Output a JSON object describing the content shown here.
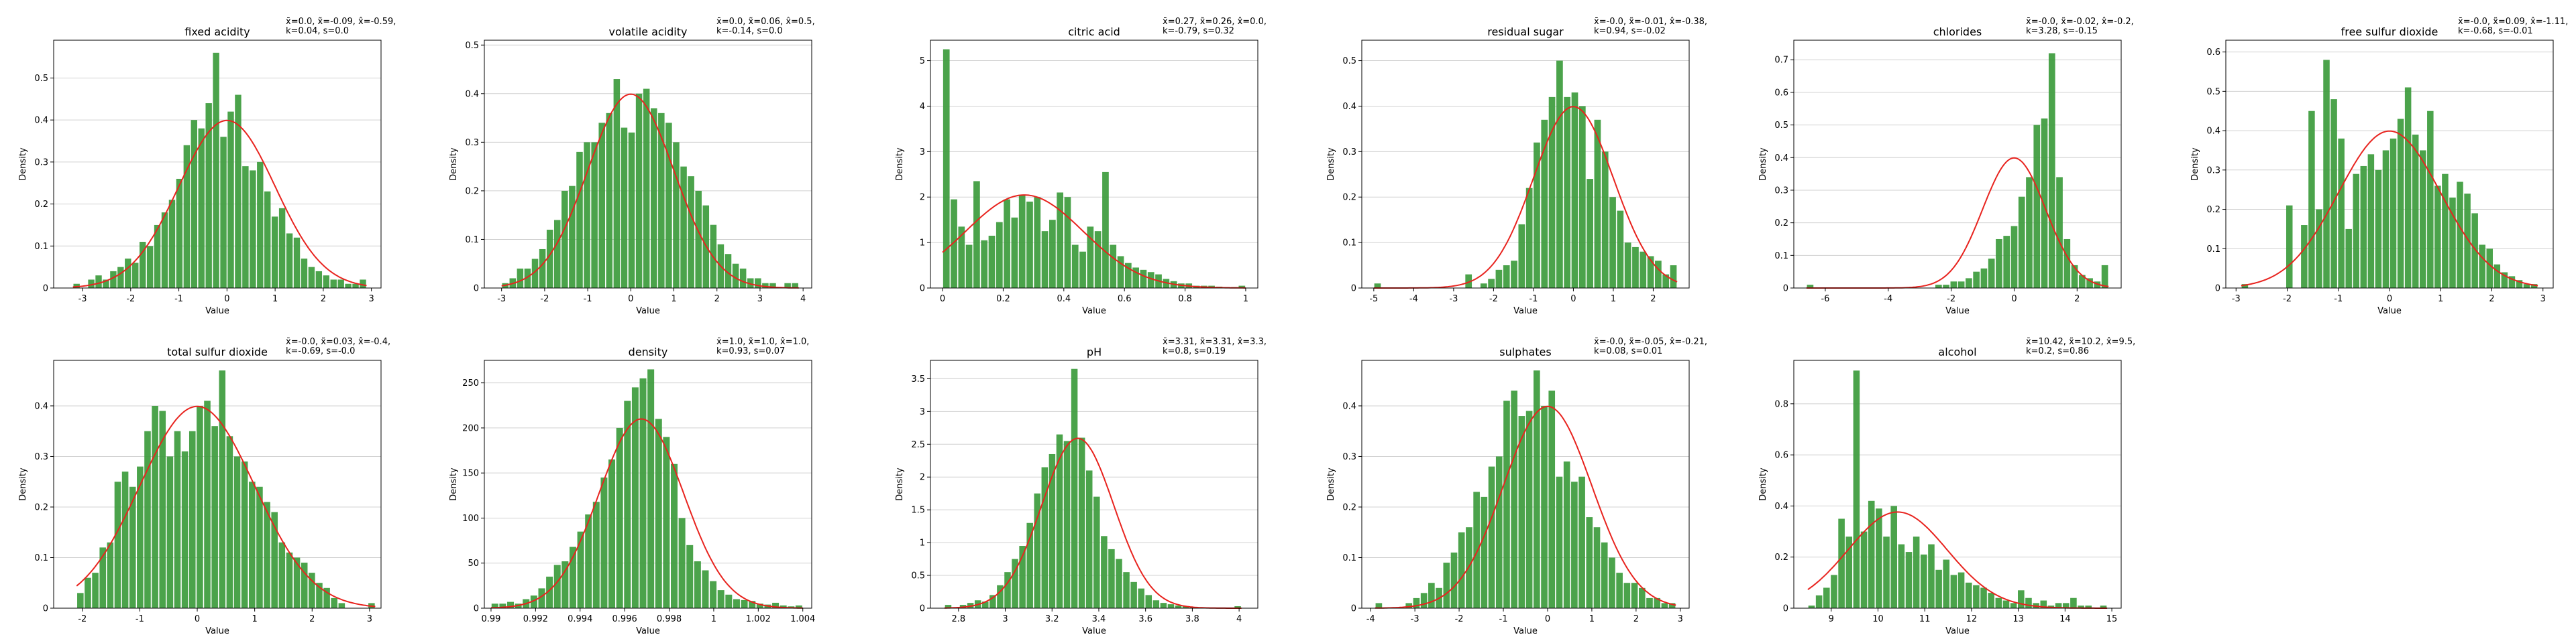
{
  "chart_data": [
    {
      "type": "bar",
      "title": "fixed acidity",
      "annotation": [
        "x̄=0.0, x̃=-0.09, x̂=-0.59,",
        "k=0.04, s=0.0"
      ],
      "xlabel": "Value",
      "ylabel": "Density",
      "xlim": [
        -3.6,
        3.2
      ],
      "ylim": [
        0,
        0.59
      ],
      "xticks": [
        -3,
        -2,
        -1,
        0,
        1,
        2,
        3
      ],
      "yticks": [
        0.0,
        0.1,
        0.2,
        0.3,
        0.4,
        0.5
      ],
      "bin_range": [
        -3.2,
        2.9
      ],
      "values": [
        0.01,
        0.0,
        0.02,
        0.03,
        0.02,
        0.04,
        0.05,
        0.07,
        0.06,
        0.11,
        0.1,
        0.15,
        0.18,
        0.21,
        0.26,
        0.34,
        0.4,
        0.38,
        0.44,
        0.56,
        0.36,
        0.42,
        0.46,
        0.29,
        0.28,
        0.3,
        0.23,
        0.17,
        0.19,
        0.13,
        0.12,
        0.07,
        0.05,
        0.04,
        0.03,
        0.02,
        0.02,
        0.01,
        0.01,
        0.02
      ],
      "curve": {
        "mean": 0.0,
        "sd": 1.0
      }
    },
    {
      "type": "bar",
      "title": "volatile acidity",
      "annotation": [
        "x̄=0.0, x̃=0.06, x̂=0.5,",
        "k=-0.14, s=0.0"
      ],
      "xlabel": "Value",
      "ylabel": "Density",
      "xlim": [
        -3.4,
        4.2
      ],
      "ylim": [
        0,
        0.51
      ],
      "xticks": [
        -3,
        -2,
        -1,
        0,
        1,
        2,
        3,
        4
      ],
      "yticks": [
        0.0,
        0.1,
        0.2,
        0.3,
        0.4,
        0.5
      ],
      "bin_range": [
        -3.0,
        3.9
      ],
      "values": [
        0.01,
        0.02,
        0.04,
        0.04,
        0.06,
        0.08,
        0.12,
        0.14,
        0.2,
        0.21,
        0.28,
        0.3,
        0.3,
        0.34,
        0.36,
        0.43,
        0.33,
        0.32,
        0.4,
        0.41,
        0.37,
        0.36,
        0.34,
        0.3,
        0.25,
        0.23,
        0.2,
        0.17,
        0.13,
        0.09,
        0.07,
        0.05,
        0.04,
        0.02,
        0.02,
        0.01,
        0.01,
        0.0,
        0.01,
        0.01
      ],
      "curve": {
        "mean": 0.0,
        "sd": 1.0
      }
    },
    {
      "type": "bar",
      "title": "citric acid",
      "annotation": [
        "x̄=0.27, x̃=0.26, x̂=0.0,",
        "k=-0.79, s=0.32"
      ],
      "xlabel": "Value",
      "ylabel": "Density",
      "xlim": [
        -0.04,
        1.04
      ],
      "ylim": [
        0,
        5.45
      ],
      "xticks": [
        0.0,
        0.2,
        0.4,
        0.6,
        0.8,
        1.0
      ],
      "yticks": [
        0,
        1,
        2,
        3,
        4,
        5
      ],
      "bin_range": [
        0.0,
        1.0
      ],
      "values": [
        5.25,
        1.95,
        1.35,
        0.95,
        2.35,
        1.05,
        1.15,
        1.45,
        1.95,
        1.55,
        2.05,
        1.9,
        2.0,
        1.25,
        1.5,
        2.1,
        2.0,
        0.95,
        0.8,
        1.35,
        1.25,
        2.55,
        0.95,
        0.7,
        0.55,
        0.45,
        0.4,
        0.35,
        0.3,
        0.2,
        0.15,
        0.1,
        0.1,
        0.05,
        0.05,
        0.05,
        0.03,
        0.02,
        0.02,
        0.05
      ],
      "curve": {
        "mean": 0.27,
        "sd": 0.195
      }
    },
    {
      "type": "bar",
      "title": "residual sugar",
      "annotation": [
        "x̄=-0.0, x̃=-0.01, x̂=-0.38,",
        "k=0.94, s=-0.02"
      ],
      "xlabel": "Value",
      "ylabel": "Density",
      "xlim": [
        -5.3,
        2.9
      ],
      "ylim": [
        0,
        0.545
      ],
      "xticks": [
        -5,
        -4,
        -3,
        -2,
        -1,
        0,
        1,
        2
      ],
      "yticks": [
        0.0,
        0.1,
        0.2,
        0.3,
        0.4,
        0.5
      ],
      "bin_range": [
        -5.0,
        2.6
      ],
      "values": [
        0.01,
        0.0,
        0.0,
        0.0,
        0.0,
        0.0,
        0.0,
        0.0,
        0.0,
        0.0,
        0.0,
        0.0,
        0.03,
        0.0,
        0.01,
        0.02,
        0.04,
        0.05,
        0.06,
        0.14,
        0.22,
        0.32,
        0.37,
        0.42,
        0.5,
        0.42,
        0.43,
        0.4,
        0.24,
        0.37,
        0.3,
        0.2,
        0.17,
        0.1,
        0.09,
        0.08,
        0.07,
        0.06,
        0.03,
        0.05
      ],
      "curve": {
        "mean": 0.0,
        "sd": 1.0
      }
    },
    {
      "type": "bar",
      "title": "chlorides",
      "annotation": [
        "x̄=-0.0, x̃=-0.02, x̂=-0.2,",
        "k=3.28, s=-0.15"
      ],
      "xlabel": "Value",
      "ylabel": "Density",
      "xlim": [
        -7.0,
        3.4
      ],
      "ylim": [
        0,
        0.76
      ],
      "xticks": [
        -6,
        -4,
        -2,
        0,
        2
      ],
      "yticks": [
        0.0,
        0.1,
        0.2,
        0.3,
        0.4,
        0.5,
        0.6,
        0.7
      ],
      "bin_range": [
        -6.6,
        3.0
      ],
      "values": [
        0.01,
        0.0,
        0.0,
        0.0,
        0.0,
        0.0,
        0.0,
        0.0,
        0.0,
        0.0,
        0.0,
        0.0,
        0.0,
        0.0,
        0.0,
        0.0,
        0.0,
        0.01,
        0.01,
        0.02,
        0.02,
        0.03,
        0.05,
        0.06,
        0.09,
        0.15,
        0.16,
        0.19,
        0.28,
        0.34,
        0.5,
        0.52,
        0.72,
        0.34,
        0.15,
        0.07,
        0.04,
        0.03,
        0.02,
        0.07
      ],
      "curve": {
        "mean": 0.0,
        "sd": 1.0
      }
    },
    {
      "type": "bar",
      "title": "free sulfur dioxide",
      "annotation": [
        "x̄=-0.0, x̃=0.09, x̂=-1.11,",
        "k=-0.68, s=-0.01"
      ],
      "xlabel": "Value",
      "ylabel": "Density",
      "xlim": [
        -3.2,
        3.2
      ],
      "ylim": [
        0,
        0.63
      ],
      "xticks": [
        -3,
        -2,
        -1,
        0,
        1,
        2,
        3
      ],
      "yticks": [
        0.0,
        0.1,
        0.2,
        0.3,
        0.4,
        0.5,
        0.6
      ],
      "bin_range": [
        -2.9,
        2.9
      ],
      "values": [
        0.01,
        0.0,
        0.0,
        0.0,
        0.0,
        0.0,
        0.21,
        0.0,
        0.16,
        0.45,
        0.2,
        0.58,
        0.48,
        0.38,
        0.15,
        0.29,
        0.31,
        0.34,
        0.3,
        0.35,
        0.38,
        0.43,
        0.51,
        0.39,
        0.35,
        0.45,
        0.26,
        0.29,
        0.23,
        0.27,
        0.24,
        0.19,
        0.11,
        0.1,
        0.06,
        0.04,
        0.03,
        0.02,
        0.01,
        0.01
      ],
      "curve": {
        "mean": 0.0,
        "sd": 1.0
      }
    },
    {
      "type": "bar",
      "title": "total sulfur dioxide",
      "annotation": [
        "x̄=-0.0, x̃=0.03, x̂=-0.4,",
        "k=-0.69, s=-0.0"
      ],
      "xlabel": "Value",
      "ylabel": "Density",
      "xlim": [
        -2.5,
        3.2
      ],
      "ylim": [
        0,
        0.49
      ],
      "xticks": [
        -2,
        -1,
        0,
        1,
        2,
        3
      ],
      "yticks": [
        0.0,
        0.1,
        0.2,
        0.3,
        0.4
      ],
      "bin_range": [
        -2.1,
        3.1
      ],
      "values": [
        0.03,
        0.06,
        0.07,
        0.12,
        0.13,
        0.25,
        0.27,
        0.24,
        0.28,
        0.35,
        0.4,
        0.39,
        0.3,
        0.35,
        0.31,
        0.35,
        0.4,
        0.41,
        0.36,
        0.47,
        0.34,
        0.3,
        0.29,
        0.25,
        0.24,
        0.21,
        0.19,
        0.13,
        0.11,
        0.1,
        0.09,
        0.07,
        0.05,
        0.04,
        0.02,
        0.01,
        0.0,
        0.0,
        0.0,
        0.01
      ],
      "curve": {
        "mean": 0.0,
        "sd": 1.0
      }
    },
    {
      "type": "bar",
      "title": "density",
      "annotation": [
        "x̄=1.0, x̃=1.0, x̂=1.0,",
        "k=0.93, s=0.07"
      ],
      "xlabel": "Value",
      "ylabel": "Density",
      "xlim": [
        0.9897,
        1.0044
      ],
      "ylim": [
        0,
        275
      ],
      "xticks": [
        0.99,
        0.992,
        0.994,
        0.996,
        0.998,
        1.0,
        1.002,
        1.004
      ],
      "yticks": [
        0,
        50,
        100,
        150,
        200,
        250
      ],
      "bin_range": [
        0.99,
        1.004
      ],
      "values": [
        5,
        5,
        7,
        5,
        10,
        14,
        22,
        35,
        48,
        52,
        68,
        85,
        104,
        118,
        145,
        165,
        200,
        230,
        245,
        255,
        265,
        210,
        190,
        160,
        100,
        70,
        52,
        42,
        30,
        20,
        15,
        10,
        9,
        8,
        5,
        4,
        6,
        3,
        2,
        3
      ],
      "curve": {
        "mean": 0.99675,
        "sd": 0.0019
      }
    },
    {
      "type": "bar",
      "title": "pH",
      "annotation": [
        "x̄=3.31, x̃=3.31, x̂=3.3,",
        "k=0.8, s=0.19"
      ],
      "xlabel": "Value",
      "ylabel": "Density",
      "xlim": [
        2.68,
        4.08
      ],
      "ylim": [
        0,
        3.78
      ],
      "xticks": [
        2.8,
        3.0,
        3.2,
        3.4,
        3.6,
        3.8,
        4.0
      ],
      "yticks": [
        0.0,
        0.5,
        1.0,
        1.5,
        2.0,
        2.5,
        3.0,
        3.5
      ],
      "bin_range": [
        2.74,
        4.01
      ],
      "values": [
        0.05,
        0.0,
        0.05,
        0.08,
        0.12,
        0.1,
        0.2,
        0.35,
        0.55,
        0.75,
        0.95,
        1.3,
        1.75,
        2.15,
        2.35,
        2.65,
        2.55,
        3.65,
        2.6,
        2.1,
        1.7,
        1.1,
        0.9,
        0.75,
        0.55,
        0.4,
        0.3,
        0.2,
        0.12,
        0.08,
        0.06,
        0.04,
        0.03,
        0.02,
        0.01,
        0.0,
        0.0,
        0.0,
        0.0,
        0.03
      ],
      "curve": {
        "mean": 3.31,
        "sd": 0.154
      }
    },
    {
      "type": "bar",
      "title": "sulphates",
      "annotation": [
        "x̄=-0.0, x̃=-0.05, x̂=-0.21,",
        "k=0.08, s=0.01"
      ],
      "xlabel": "Value",
      "ylabel": "Density",
      "xlim": [
        -4.2,
        3.2
      ],
      "ylim": [
        0,
        0.49
      ],
      "xticks": [
        -4,
        -3,
        -2,
        -1,
        0,
        1,
        2,
        3
      ],
      "yticks": [
        0.0,
        0.1,
        0.2,
        0.3,
        0.4
      ],
      "bin_range": [
        -3.9,
        2.9
      ],
      "values": [
        0.01,
        0.0,
        0.0,
        0.0,
        0.01,
        0.02,
        0.03,
        0.05,
        0.04,
        0.09,
        0.11,
        0.15,
        0.16,
        0.23,
        0.22,
        0.28,
        0.3,
        0.41,
        0.43,
        0.38,
        0.39,
        0.47,
        0.4,
        0.43,
        0.26,
        0.29,
        0.25,
        0.26,
        0.18,
        0.16,
        0.13,
        0.1,
        0.07,
        0.05,
        0.05,
        0.04,
        0.02,
        0.02,
        0.01,
        0.01
      ],
      "curve": {
        "mean": 0.0,
        "sd": 1.0
      }
    },
    {
      "type": "bar",
      "title": "alcohol",
      "annotation": [
        "x̄=10.42, x̃=10.2, x̂=9.5,",
        "k=0.2, s=0.86"
      ],
      "xlabel": "Value",
      "ylabel": "Density",
      "xlim": [
        8.2,
        15.2
      ],
      "ylim": [
        0,
        0.97
      ],
      "xticks": [
        9,
        10,
        11,
        12,
        13,
        14,
        15
      ],
      "yticks": [
        0.0,
        0.2,
        0.4,
        0.6,
        0.8
      ],
      "bin_range": [
        8.5,
        14.9
      ],
      "values": [
        0.01,
        0.05,
        0.08,
        0.13,
        0.35,
        0.28,
        0.93,
        0.3,
        0.42,
        0.39,
        0.28,
        0.4,
        0.25,
        0.22,
        0.28,
        0.21,
        0.25,
        0.15,
        0.19,
        0.13,
        0.14,
        0.1,
        0.09,
        0.08,
        0.06,
        0.04,
        0.03,
        0.02,
        0.07,
        0.04,
        0.02,
        0.03,
        0.01,
        0.02,
        0.02,
        0.04,
        0.01,
        0.01,
        0.0,
        0.01
      ],
      "curve": {
        "mean": 10.42,
        "sd": 1.06
      }
    }
  ]
}
